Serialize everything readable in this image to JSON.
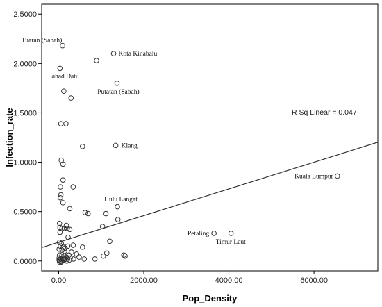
{
  "chart_data": {
    "type": "scatter",
    "xlabel": "Pop_Density",
    "ylabel": "Infection_rate",
    "xlim": [
      -400,
      7500
    ],
    "ylim": [
      -0.1,
      2.6
    ],
    "x_ticks": [
      {
        "value": 0,
        "label": "0.00"
      },
      {
        "value": 2000,
        "label": "2000.00"
      },
      {
        "value": 4000,
        "label": "4000.00"
      },
      {
        "value": 6000,
        "label": "6000.00"
      }
    ],
    "y_ticks": [
      {
        "value": 0,
        "label": "0.0000"
      },
      {
        "value": 0.5,
        "label": "0.5000"
      },
      {
        "value": 1.0,
        "label": "1.0000"
      },
      {
        "value": 1.5,
        "label": "1.5000"
      },
      {
        "value": 2.0,
        "label": "2.0000"
      },
      {
        "value": 2.5,
        "label": "2.5000"
      }
    ],
    "grid": false,
    "fit_line": {
      "label": "R Sq Linear = 0.047",
      "intercept": 0.19,
      "slope": 0.000135
    },
    "labeled_points": [
      {
        "name": "Tuaran (Sabah)",
        "x": 90,
        "y": 2.18
      },
      {
        "name": "Kota Kinabalu",
        "x": 1290,
        "y": 2.1
      },
      {
        "name": "Lahad Datu",
        "x": 30,
        "y": 1.95
      },
      {
        "name": "Putatan (Sabah)",
        "x": 1370,
        "y": 1.8
      },
      {
        "name": "Klang",
        "x": 1340,
        "y": 1.17
      },
      {
        "name": "Kuala Lumpur",
        "x": 6550,
        "y": 0.86
      },
      {
        "name": "Hulu Langat",
        "x": 1380,
        "y": 0.55
      },
      {
        "name": "Petaling",
        "x": 3650,
        "y": 0.28
      },
      {
        "name": "Timur Laut",
        "x": 4050,
        "y": 0.28
      }
    ],
    "points": [
      [
        890,
        2.03
      ],
      [
        120,
        1.72
      ],
      [
        290,
        1.65
      ],
      [
        50,
        1.39
      ],
      [
        170,
        1.39
      ],
      [
        560,
        1.16
      ],
      [
        60,
        1.02
      ],
      [
        100,
        0.98
      ],
      [
        100,
        0.82
      ],
      [
        40,
        0.75
      ],
      [
        340,
        0.75
      ],
      [
        50,
        0.67
      ],
      [
        40,
        0.64
      ],
      [
        100,
        0.59
      ],
      [
        260,
        0.53
      ],
      [
        620,
        0.49
      ],
      [
        690,
        0.48
      ],
      [
        1110,
        0.48
      ],
      [
        1390,
        0.42
      ],
      [
        20,
        0.38
      ],
      [
        180,
        0.36
      ],
      [
        30,
        0.34
      ],
      [
        80,
        0.33
      ],
      [
        130,
        0.33
      ],
      [
        200,
        0.33
      ],
      [
        260,
        0.32
      ],
      [
        1030,
        0.35
      ],
      [
        30,
        0.29
      ],
      [
        1200,
        0.2
      ],
      [
        220,
        0.24
      ],
      [
        20,
        0.19
      ],
      [
        60,
        0.18
      ],
      [
        40,
        0.15
      ],
      [
        110,
        0.14
      ],
      [
        150,
        0.13
      ],
      [
        210,
        0.15
      ],
      [
        340,
        0.16
      ],
      [
        560,
        0.14
      ],
      [
        10,
        0.12
      ],
      [
        80,
        0.11
      ],
      [
        140,
        0.1
      ],
      [
        300,
        0.09
      ],
      [
        420,
        0.07
      ],
      [
        1130,
        0.08
      ],
      [
        20,
        0.06
      ],
      [
        70,
        0.05
      ],
      [
        120,
        0.05
      ],
      [
        180,
        0.04
      ],
      [
        240,
        0.06
      ],
      [
        480,
        0.04
      ],
      [
        1050,
        0.05
      ],
      [
        1530,
        0.06
      ],
      [
        1560,
        0.05
      ],
      [
        10,
        0.03
      ],
      [
        50,
        0.02
      ],
      [
        90,
        0.02
      ],
      [
        150,
        0.02
      ],
      [
        210,
        0.02
      ],
      [
        270,
        0.03
      ],
      [
        350,
        0.02
      ],
      [
        600,
        0.02
      ],
      [
        850,
        0.02
      ],
      [
        10,
        0.01
      ],
      [
        40,
        0.0
      ],
      [
        80,
        0.0
      ],
      [
        130,
        0.01
      ],
      [
        190,
        0.0
      ],
      [
        250,
        0.01
      ],
      [
        20,
        -0.01
      ],
      [
        60,
        -0.01
      ]
    ]
  }
}
